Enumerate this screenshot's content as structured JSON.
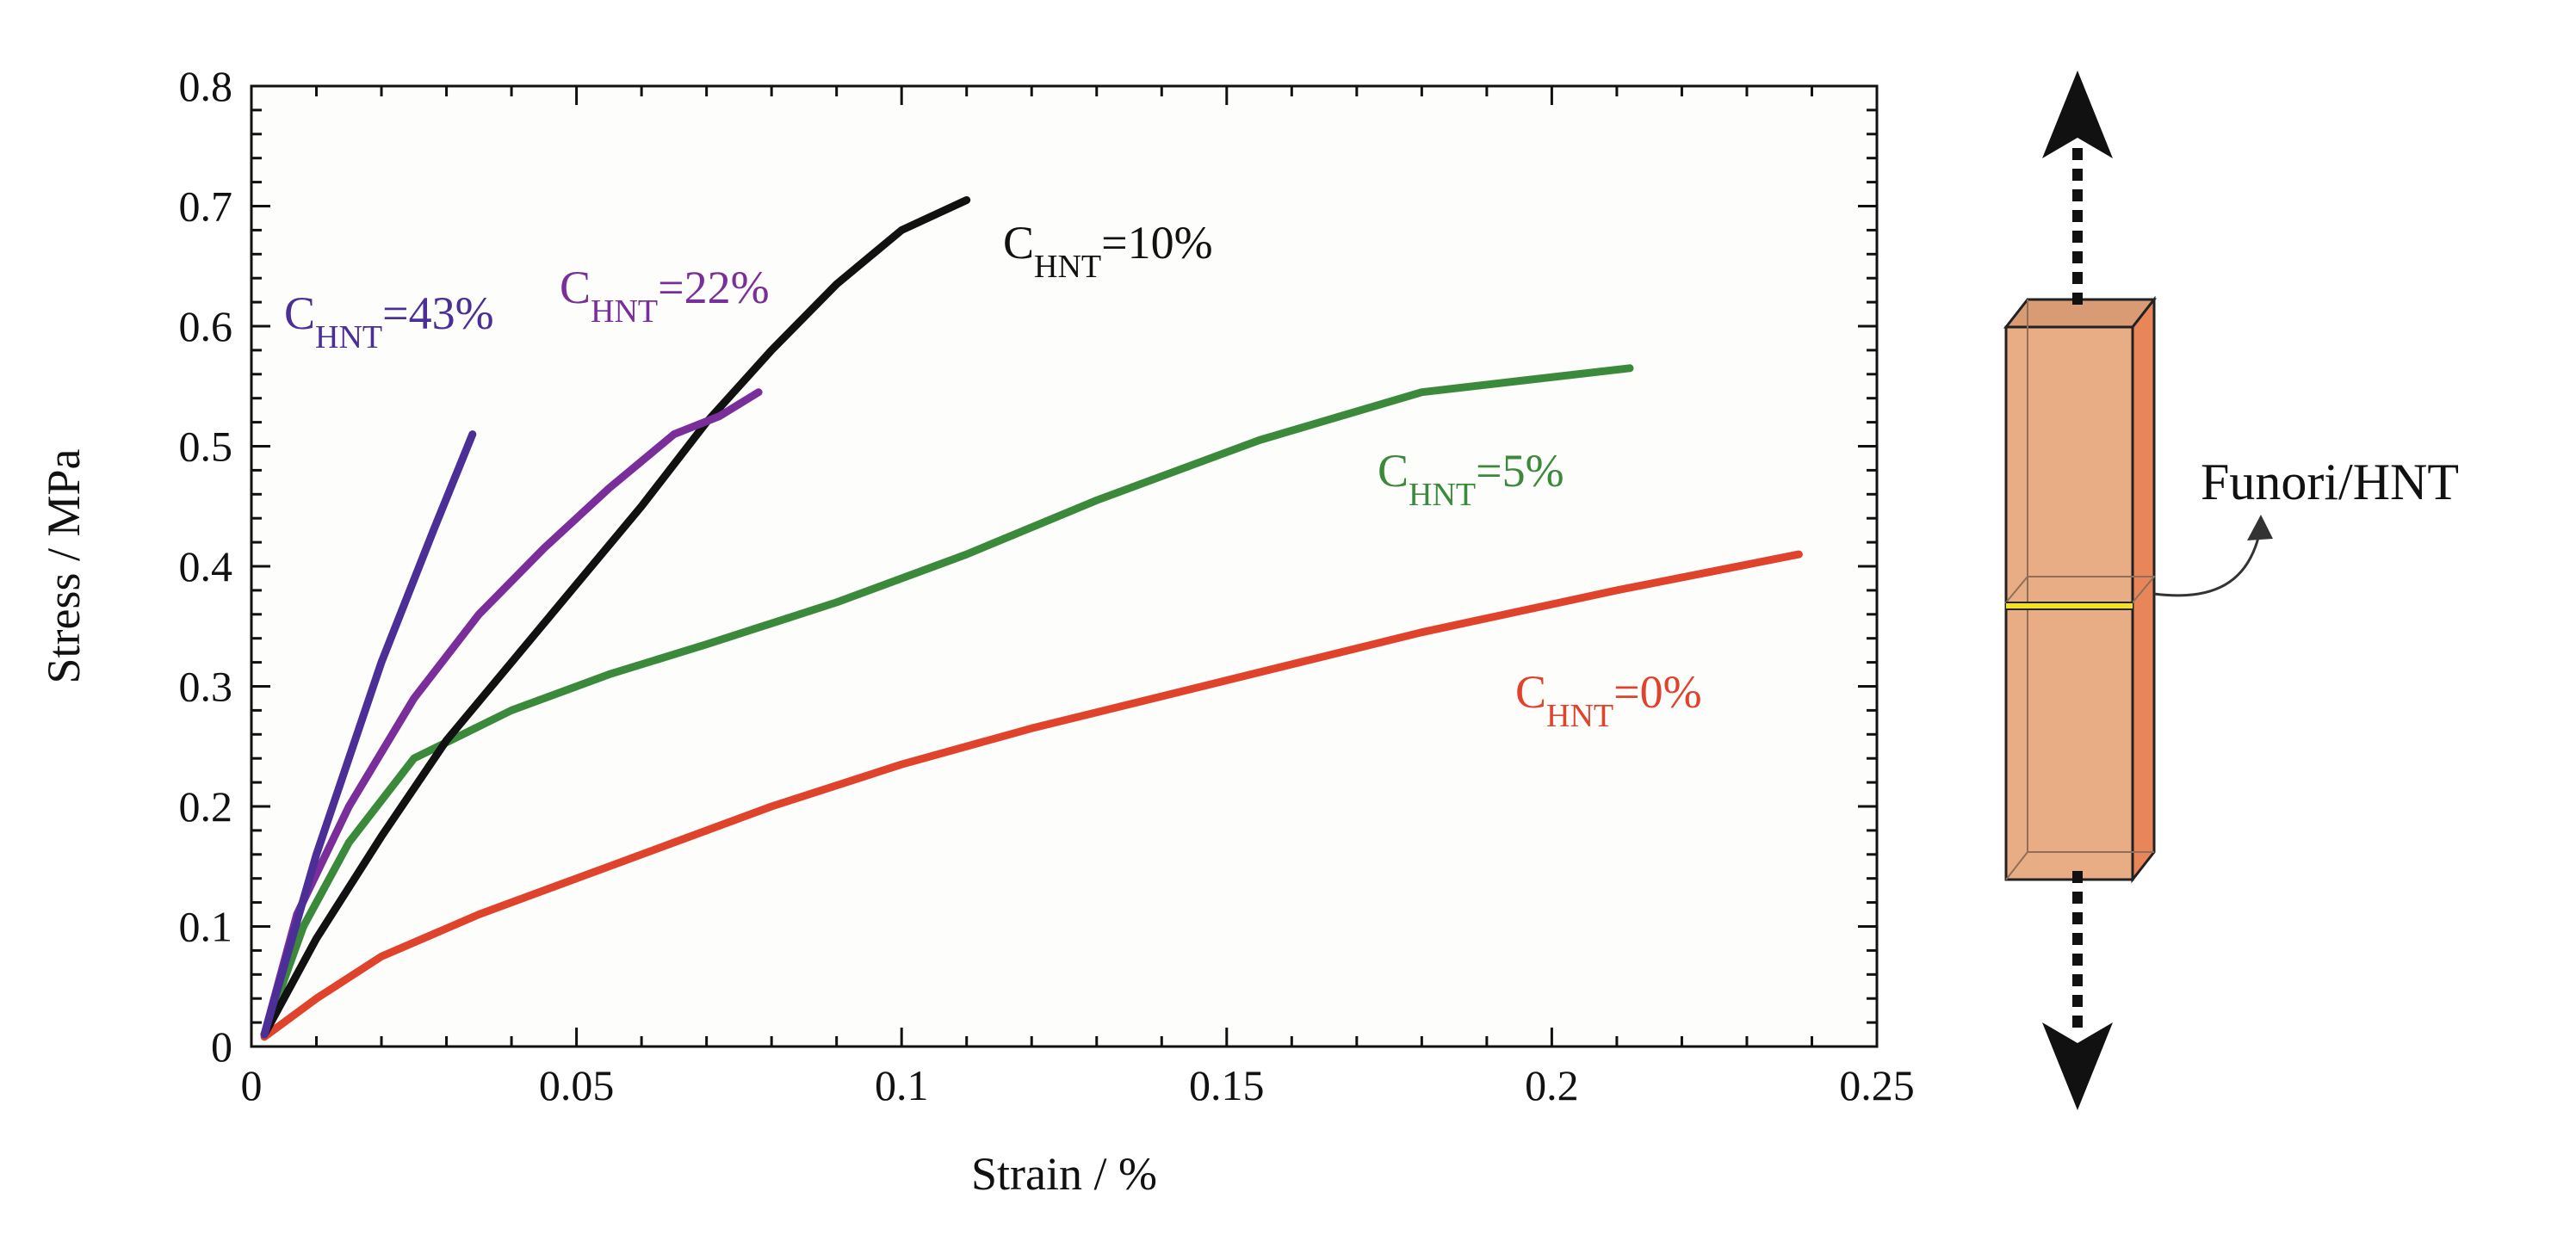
{
  "chart_data": {
    "type": "line",
    "title": "",
    "xlabel": "Strain / %",
    "ylabel": "Stress / MPa",
    "xlim": [
      0,
      0.25
    ],
    "ylim": [
      0,
      0.8
    ],
    "xticks": [
      0,
      0.05,
      0.1,
      0.15,
      0.2,
      0.25
    ],
    "xtick_labels": [
      "0",
      "0.05",
      "0.1",
      "0.15",
      "0.2",
      "0.25"
    ],
    "yticks": [
      0,
      0.1,
      0.2,
      0.3,
      0.4,
      0.5,
      0.6,
      0.7,
      0.8
    ],
    "ytick_labels": [
      "0",
      "0.1",
      "0.2",
      "0.3",
      "0.4",
      "0.5",
      "0.6",
      "0.7",
      "0.8"
    ],
    "grid": false,
    "series": [
      {
        "name": "C_HNT=0%",
        "label_main": "C",
        "label_sub": "HNT",
        "label_tail": "=0%",
        "color": "#e0432b",
        "x": [
          0.002,
          0.01,
          0.02,
          0.035,
          0.05,
          0.065,
          0.08,
          0.1,
          0.12,
          0.15,
          0.18,
          0.21,
          0.238
        ],
        "y": [
          0.008,
          0.04,
          0.075,
          0.11,
          0.14,
          0.17,
          0.2,
          0.235,
          0.265,
          0.305,
          0.345,
          0.38,
          0.41
        ]
      },
      {
        "name": "C_HNT=5%",
        "label_main": "C",
        "label_sub": "HNT",
        "label_tail": "=5%",
        "color": "#3b8a3b",
        "x": [
          0.002,
          0.008,
          0.015,
          0.025,
          0.04,
          0.055,
          0.07,
          0.09,
          0.11,
          0.13,
          0.155,
          0.18,
          0.212
        ],
        "y": [
          0.01,
          0.1,
          0.17,
          0.24,
          0.28,
          0.31,
          0.335,
          0.37,
          0.41,
          0.455,
          0.505,
          0.545,
          0.565
        ]
      },
      {
        "name": "C_HNT=10%",
        "label_main": "C",
        "label_sub": "HNT",
        "label_tail": "=10%",
        "color": "#111111",
        "x": [
          0.002,
          0.01,
          0.02,
          0.03,
          0.04,
          0.05,
          0.06,
          0.07,
          0.08,
          0.09,
          0.1,
          0.11
        ],
        "y": [
          0.01,
          0.09,
          0.175,
          0.255,
          0.32,
          0.385,
          0.45,
          0.52,
          0.58,
          0.635,
          0.68,
          0.705
        ]
      },
      {
        "name": "C_HNT=22%",
        "label_main": "C",
        "label_sub": "HNT",
        "label_tail": "=22%",
        "color": "#7a2e9a",
        "x": [
          0.002,
          0.007,
          0.015,
          0.025,
          0.035,
          0.045,
          0.055,
          0.065,
          0.072,
          0.078
        ],
        "y": [
          0.01,
          0.11,
          0.2,
          0.29,
          0.36,
          0.415,
          0.465,
          0.51,
          0.525,
          0.545
        ]
      },
      {
        "name": "C_HNT=43%",
        "label_main": "C",
        "label_sub": "HNT",
        "label_tail": "=43%",
        "color": "#4b2e96",
        "x": [
          0.002,
          0.01,
          0.02,
          0.028,
          0.034
        ],
        "y": [
          0.01,
          0.16,
          0.32,
          0.43,
          0.51
        ]
      }
    ]
  },
  "diagram": {
    "label": "Funori/HNT",
    "block_color": "#e8ad84",
    "block_side_color": "#e8865a",
    "interface_color": "#f3e31b"
  }
}
